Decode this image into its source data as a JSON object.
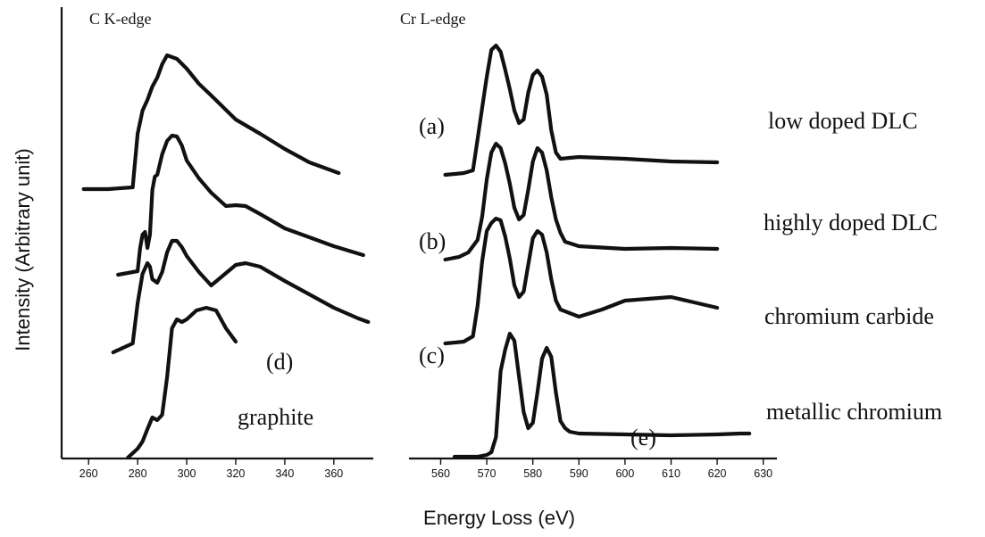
{
  "chart_data": {
    "type": "line",
    "ylabel": "Intensity  (Arbitrary unit)",
    "xlabel": "Energy Loss (eV)",
    "grid": false,
    "panels": [
      {
        "edge_label": "C K-edge",
        "xlim": [
          253,
          375
        ],
        "xticks": [
          260,
          280,
          300,
          320,
          340,
          360
        ],
        "series": [
          {
            "name": "low doped DLC",
            "x": [
              258,
              268,
              278,
              280,
              282,
              284,
              286,
              288,
              290,
              292,
              294,
              296,
              300,
              305,
              310,
              320,
              330,
              340,
              350,
              362
            ],
            "y": [
              0,
              0,
              2,
              62,
              88,
              100,
              115,
              125,
              140,
              150,
              148,
              146,
              135,
              118,
              105,
              78,
              62,
              45,
              30,
              18
            ]
          },
          {
            "name": "highly doped DLC",
            "x": [
              272,
              280,
              281,
              282,
              283,
              284,
              285,
              286,
              287,
              288,
              290,
              292,
              294,
              296,
              298,
              300,
              305,
              310,
              316,
              320,
              324,
              330,
              340,
              350,
              360,
              372
            ],
            "y": [
              0,
              4,
              30,
              45,
              48,
              30,
              45,
              95,
              110,
              112,
              135,
              150,
              156,
              155,
              145,
              128,
              108,
              92,
              77,
              78,
              77,
              68,
              52,
              42,
              32,
              22
            ]
          },
          {
            "name": "chromium carbide",
            "x": [
              270,
              278,
              280,
              282,
              284,
              285,
              286,
              288,
              290,
              292,
              294,
              296,
              298,
              300,
              305,
              310,
              320,
              324,
              330,
              340,
              350,
              360,
              370,
              374
            ],
            "y": [
              0,
              10,
              55,
              88,
              100,
              96,
              82,
              78,
              90,
              112,
              125,
              125,
              118,
              108,
              90,
              75,
              98,
              100,
              96,
              80,
              65,
              50,
              38,
              34
            ]
          },
          {
            "name": "graphite",
            "x": [
              276,
              280,
              282,
              284,
              286,
              288,
              290,
              292,
              294,
              296,
              298,
              300,
              304,
              308,
              312,
              316,
              320
            ],
            "y": [
              0,
              10,
              18,
              32,
              45,
              42,
              48,
              90,
              145,
              155,
              152,
              155,
              165,
              168,
              165,
              145,
              130
            ]
          }
        ],
        "annotations": [
          "(d)",
          "graphite"
        ]
      },
      {
        "edge_label": "Cr L-edge",
        "xlim": [
          557,
          632
        ],
        "xticks": [
          560,
          570,
          580,
          590,
          600,
          610,
          620,
          630
        ],
        "series": [
          {
            "name": "low doped DLC",
            "x": [
              561,
              565,
              567,
              568,
              569,
              570,
              571,
              572,
              573,
              574,
              575,
              576,
              577,
              578,
              579,
              580,
              581,
              582,
              583,
              584,
              585,
              586,
              590,
              600,
              610,
              620
            ],
            "y": [
              0,
              2,
              5,
              40,
              75,
              110,
              140,
              145,
              138,
              118,
              96,
              72,
              58,
              62,
              92,
              112,
              117,
              110,
              90,
              50,
              25,
              18,
              20,
              18,
              15,
              14
            ]
          },
          {
            "name": "highly doped DLC",
            "x": [
              561,
              564,
              566,
              568,
              569,
              570,
              571,
              572,
              573,
              574,
              575,
              576,
              577,
              578,
              579,
              580,
              581,
              582,
              583,
              584,
              585,
              586,
              587,
              590,
              600,
              610,
              620
            ],
            "y": [
              0,
              3,
              8,
              22,
              48,
              90,
              120,
              130,
              125,
              108,
              85,
              58,
              45,
              50,
              78,
              110,
              125,
              120,
              100,
              70,
              45,
              30,
              20,
              15,
              12,
              13,
              12
            ]
          },
          {
            "name": "chromium carbide",
            "x": [
              561,
              565,
              567,
              568,
              569,
              570,
              571,
              572,
              573,
              574,
              575,
              576,
              577,
              578,
              579,
              580,
              581,
              582,
              583,
              584,
              585,
              586,
              590,
              595,
              600,
              610,
              615,
              620
            ],
            "y": [
              0,
              2,
              8,
              42,
              92,
              126,
              135,
              140,
              138,
              120,
              95,
              65,
              52,
              58,
              88,
              118,
              126,
              122,
              102,
              72,
              48,
              38,
              30,
              38,
              48,
              52,
              46,
              40
            ]
          },
          {
            "name": "metallic chromium",
            "x": [
              563,
              568,
              570,
              571,
              572,
              573,
              574,
              575,
              576,
              577,
              578,
              579,
              580,
              581,
              582,
              583,
              584,
              585,
              586,
              587,
              588,
              590,
              600,
              610,
              620,
              625,
              627
            ],
            "y": [
              0,
              0,
              2,
              5,
              22,
              96,
              120,
              138,
              130,
              90,
              50,
              32,
              38,
              72,
              110,
              122,
              112,
              72,
              40,
              32,
              28,
              26,
              25,
              24,
              25,
              26,
              26
            ]
          }
        ],
        "annotations": [
          "(e)"
        ]
      }
    ],
    "panel_labels": [
      "(a)",
      "(b)",
      "(c)"
    ],
    "legend_entries": [
      "low doped DLC",
      "highly doped DLC",
      "chromium carbide",
      "metallic chromium"
    ]
  }
}
